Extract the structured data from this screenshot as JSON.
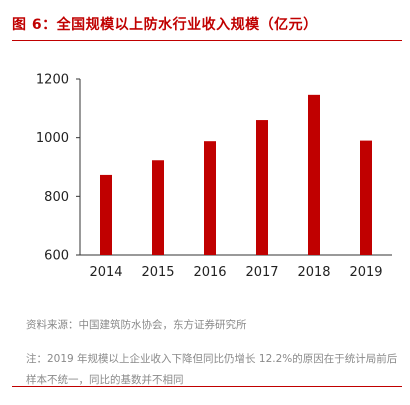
{
  "figure": {
    "title": "图 6：全国规模以上防水行业收入规模（亿元）",
    "source": "资料来源：中国建筑防水协会，东方证券研究所",
    "note": "注：2019 年规模以上企业收入下降但同比仍增长 12.2%的原因在于统计局前后样本不统一，同比的基数并不相同"
  },
  "colors": {
    "accent": "#c00000",
    "bar": "#c00000",
    "muted_text": "#8a8a8a"
  },
  "chart_data": {
    "type": "bar",
    "title": "图 6：全国规模以上防水行业收入规模（亿元）",
    "categories": [
      "2014",
      "2015",
      "2016",
      "2017",
      "2018",
      "2019"
    ],
    "values": [
      873,
      923,
      988,
      1060,
      1146,
      990
    ],
    "ylim": [
      600,
      1200
    ],
    "yticks": [
      600,
      800,
      1000,
      1200
    ],
    "grid": false,
    "legend": "none"
  }
}
